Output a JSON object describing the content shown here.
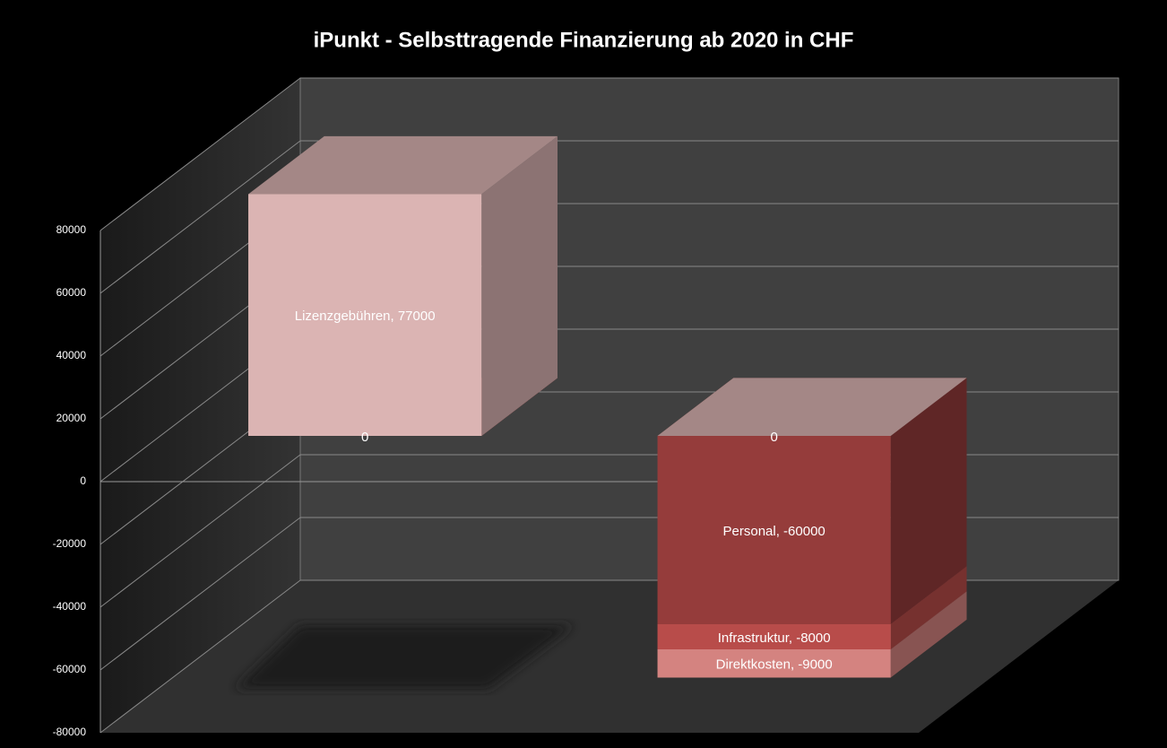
{
  "chart_data": {
    "type": "bar",
    "stacked": true,
    "three_d": true,
    "title": "iPunkt - Selbsttragende Finanzierung ab 2020 in CHF",
    "categories": [
      null,
      null
    ],
    "series": [
      {
        "color": "#dbb4b3",
        "values": [
          77000,
          0
        ],
        "value_labels": [
          "Lizenzgebühren, 77000",
          "0"
        ]
      },
      {
        "color": "#953c3b",
        "values": [
          0,
          -60000
        ],
        "value_labels": [
          "0",
          "Personal, -60000"
        ]
      },
      {
        "color": "#b84c4a",
        "values": [
          0,
          -8000
        ],
        "value_labels": [
          null,
          "Infrastruktur, -8000"
        ]
      },
      {
        "color": "#d48380",
        "values": [
          0,
          -9000
        ],
        "value_labels": [
          null,
          "Direktkosten, -9000"
        ]
      }
    ],
    "ylim": [
      -80000,
      80000
    ],
    "yticks": [
      -80000,
      -60000,
      -40000,
      -20000,
      0,
      20000,
      40000,
      60000,
      80000
    ],
    "grid": true
  }
}
